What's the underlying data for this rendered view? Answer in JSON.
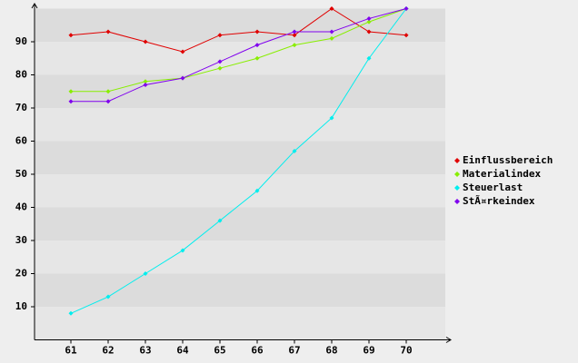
{
  "chart_data": {
    "type": "line",
    "categories": [
      "61",
      "62",
      "63",
      "64",
      "65",
      "66",
      "67",
      "68",
      "69",
      "70"
    ],
    "series": [
      {
        "name": "Einflussbereich",
        "color": "#e00000",
        "values": [
          92,
          93,
          90,
          87,
          92,
          93,
          92,
          100,
          93,
          92
        ]
      },
      {
        "name": "Materialindex",
        "color": "#88ee00",
        "values": [
          75,
          75,
          78,
          79,
          82,
          85,
          89,
          91,
          96,
          100
        ]
      },
      {
        "name": "Steuerlast",
        "color": "#00eeee",
        "values": [
          8,
          13,
          20,
          27,
          36,
          45,
          57,
          67,
          85,
          100
        ]
      },
      {
        "name": "StÃ¤rkeindex",
        "color": "#8000ee",
        "values": [
          72,
          72,
          77,
          79,
          84,
          89,
          93,
          93,
          97,
          100
        ]
      }
    ],
    "ylim": [
      0,
      100
    ],
    "yticks": [
      10,
      20,
      30,
      40,
      50,
      60,
      70,
      80,
      90
    ],
    "legend": "right"
  }
}
